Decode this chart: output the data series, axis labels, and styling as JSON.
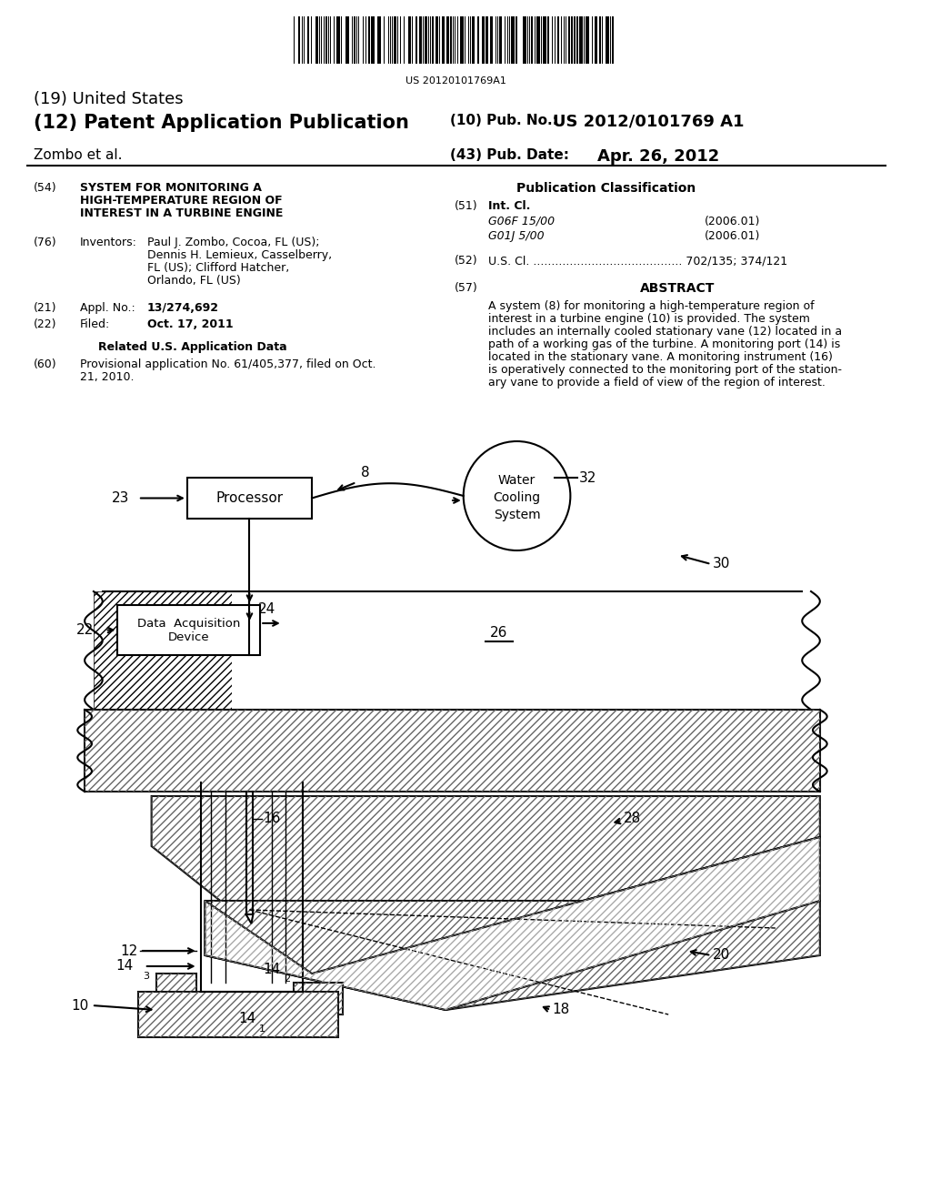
{
  "background_color": "#ffffff",
  "barcode_text": "US 20120101769A1",
  "title_19": "(19) United States",
  "title_12": "(12) Patent Application Publication",
  "pub_no_label": "(10) Pub. No.:",
  "pub_no": "US 2012/0101769 A1",
  "inventor_label": "Zombo et al.",
  "pub_date_label": "(43) Pub. Date:",
  "pub_date": "Apr. 26, 2012",
  "field54_label": "(54)",
  "field54": "SYSTEM FOR MONITORING A\nHIGH-TEMPERATURE REGION OF\nINTEREST IN A TURBINE ENGINE",
  "field76_label": "(76)",
  "field76_title": "Inventors:",
  "field76_text": "Paul J. Zombo, Cocoa, FL (US);\nDennis H. Lemieux, Casselberry,\nFL (US); Clifford Hatcher,\nOrlando, FL (US)",
  "field21_label": "(21)",
  "field21_title": "Appl. No.:",
  "field21_text": "13/274,692",
  "field22_label": "(22)",
  "field22_title": "Filed:",
  "field22_text": "Oct. 17, 2011",
  "related_title": "Related U.S. Application Data",
  "field60_label": "(60)",
  "field60_text": "Provisional application No. 61/405,377, filed on Oct.\n21, 2010.",
  "pub_class_title": "Publication Classification",
  "field51_label": "(51)",
  "field51_title": "Int. Cl.",
  "field51_class1": "G06F 15/00",
  "field51_year1": "(2006.01)",
  "field51_class2": "G01J 5/00",
  "field51_year2": "(2006.01)",
  "field52_label": "(52)",
  "field52_text": "U.S. Cl. ......................................... 702/135; 374/121",
  "field57_label": "(57)",
  "field57_title": "ABSTRACT",
  "field57_text": "A system (8) for monitoring a high-temperature region of\ninterest in a turbine engine (10) is provided. The system\nincludes an internally cooled stationary vane (12) located in a\npath of a working gas of the turbine. A monitoring port (14) is\nlocated in the stationary vane. A monitoring instrument (16)\nis operatively connected to the monitoring port of the station-\nary vane to provide a field of view of the region of interest."
}
